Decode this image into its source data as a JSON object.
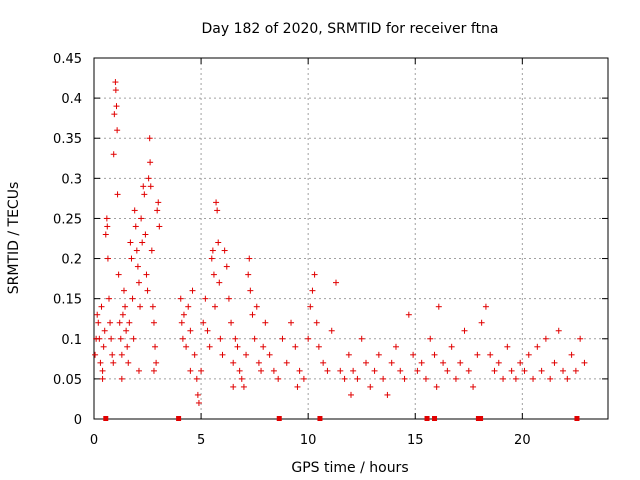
{
  "chart_data": {
    "type": "scatter",
    "title": "Day 182 of 2020, SRMTID for receiver ftna",
    "xlabel": "GPS time / hours",
    "ylabel": "SRMTID / TECUs",
    "xlim": [
      0,
      24
    ],
    "ylim": [
      0,
      0.45
    ],
    "xticks": [
      0,
      5,
      10,
      15,
      20
    ],
    "xtick_labels": [
      "0",
      "5",
      "10",
      "15",
      "20"
    ],
    "yticks": [
      0,
      0.05,
      0.1,
      0.15,
      0.2,
      0.25,
      0.3,
      0.35,
      0.4,
      0.45
    ],
    "ytick_labels": [
      "0",
      "0.05",
      "0.1",
      "0.15",
      "0.2",
      "0.25",
      "0.3",
      "0.35",
      "0.4",
      "0.45"
    ],
    "grid": true,
    "marker": "+",
    "color": "#e00000",
    "zero_markers_x": [
      0.55,
      3.95,
      8.65,
      10.55,
      15.55,
      15.9,
      17.95,
      18.05,
      22.55
    ],
    "series": [
      {
        "name": "SRMTID",
        "points": [
          [
            0.05,
            0.08
          ],
          [
            0.1,
            0.1
          ],
          [
            0.15,
            0.13
          ],
          [
            0.2,
            0.12
          ],
          [
            0.25,
            0.1
          ],
          [
            0.3,
            0.07
          ],
          [
            0.35,
            0.14
          ],
          [
            0.4,
            0.06
          ],
          [
            0.45,
            0.09
          ],
          [
            0.5,
            0.11
          ],
          [
            0.55,
            0.23
          ],
          [
            0.6,
            0.25
          ],
          [
            0.62,
            0.24
          ],
          [
            0.65,
            0.2
          ],
          [
            0.7,
            0.15
          ],
          [
            0.75,
            0.12
          ],
          [
            0.8,
            0.1
          ],
          [
            0.85,
            0.08
          ],
          [
            0.9,
            0.07
          ],
          [
            0.92,
            0.33
          ],
          [
            0.95,
            0.38
          ],
          [
            1.0,
            0.42
          ],
          [
            1.02,
            0.41
          ],
          [
            1.05,
            0.39
          ],
          [
            1.08,
            0.36
          ],
          [
            1.1,
            0.28
          ],
          [
            1.15,
            0.18
          ],
          [
            1.2,
            0.12
          ],
          [
            1.25,
            0.1
          ],
          [
            1.3,
            0.08
          ],
          [
            1.35,
            0.13
          ],
          [
            1.4,
            0.16
          ],
          [
            1.45,
            0.14
          ],
          [
            1.5,
            0.11
          ],
          [
            1.55,
            0.09
          ],
          [
            1.6,
            0.07
          ],
          [
            1.65,
            0.12
          ],
          [
            1.7,
            0.22
          ],
          [
            1.75,
            0.2
          ],
          [
            1.8,
            0.15
          ],
          [
            1.85,
            0.1
          ],
          [
            1.9,
            0.26
          ],
          [
            1.95,
            0.24
          ],
          [
            2.0,
            0.21
          ],
          [
            2.05,
            0.19
          ],
          [
            2.1,
            0.17
          ],
          [
            2.15,
            0.14
          ],
          [
            2.2,
            0.25
          ],
          [
            2.25,
            0.22
          ],
          [
            2.3,
            0.29
          ],
          [
            2.35,
            0.28
          ],
          [
            2.4,
            0.23
          ],
          [
            2.45,
            0.18
          ],
          [
            2.5,
            0.16
          ],
          [
            2.55,
            0.3
          ],
          [
            2.6,
            0.35
          ],
          [
            2.62,
            0.32
          ],
          [
            2.65,
            0.29
          ],
          [
            2.7,
            0.21
          ],
          [
            2.75,
            0.14
          ],
          [
            2.8,
            0.12
          ],
          [
            2.85,
            0.09
          ],
          [
            2.9,
            0.07
          ],
          [
            2.95,
            0.26
          ],
          [
            3.0,
            0.27
          ],
          [
            3.05,
            0.24
          ],
          [
            1.3,
            0.05
          ],
          [
            2.1,
            0.06
          ],
          [
            0.4,
            0.05
          ],
          [
            2.8,
            0.06
          ],
          [
            4.05,
            0.15
          ],
          [
            4.1,
            0.12
          ],
          [
            4.15,
            0.1
          ],
          [
            4.2,
            0.13
          ],
          [
            4.3,
            0.09
          ],
          [
            4.4,
            0.14
          ],
          [
            4.5,
            0.11
          ],
          [
            4.6,
            0.16
          ],
          [
            4.7,
            0.08
          ],
          [
            4.8,
            0.05
          ],
          [
            4.85,
            0.03
          ],
          [
            4.9,
            0.02
          ],
          [
            5.0,
            0.06
          ],
          [
            5.1,
            0.12
          ],
          [
            5.2,
            0.15
          ],
          [
            5.3,
            0.11
          ],
          [
            5.4,
            0.09
          ],
          [
            5.5,
            0.2
          ],
          [
            5.55,
            0.21
          ],
          [
            5.6,
            0.18
          ],
          [
            5.65,
            0.14
          ],
          [
            5.7,
            0.27
          ],
          [
            5.75,
            0.26
          ],
          [
            5.8,
            0.22
          ],
          [
            5.85,
            0.17
          ],
          [
            5.9,
            0.1
          ],
          [
            6.0,
            0.08
          ],
          [
            6.1,
            0.21
          ],
          [
            6.2,
            0.19
          ],
          [
            6.3,
            0.15
          ],
          [
            6.4,
            0.12
          ],
          [
            6.5,
            0.07
          ],
          [
            6.6,
            0.1
          ],
          [
            6.7,
            0.09
          ],
          [
            6.8,
            0.06
          ],
          [
            6.9,
            0.05
          ],
          [
            7.0,
            0.04
          ],
          [
            7.1,
            0.08
          ],
          [
            7.2,
            0.18
          ],
          [
            7.25,
            0.2
          ],
          [
            7.3,
            0.16
          ],
          [
            7.4,
            0.13
          ],
          [
            7.5,
            0.1
          ],
          [
            7.6,
            0.14
          ],
          [
            7.7,
            0.07
          ],
          [
            7.8,
            0.06
          ],
          [
            7.9,
            0.09
          ],
          [
            8.0,
            0.12
          ],
          [
            8.2,
            0.08
          ],
          [
            8.4,
            0.06
          ],
          [
            8.6,
            0.05
          ],
          [
            8.8,
            0.1
          ],
          [
            9.0,
            0.07
          ],
          [
            9.2,
            0.12
          ],
          [
            9.4,
            0.09
          ],
          [
            9.6,
            0.06
          ],
          [
            9.8,
            0.05
          ],
          [
            10.0,
            0.1
          ],
          [
            10.1,
            0.14
          ],
          [
            10.2,
            0.16
          ],
          [
            10.3,
            0.18
          ],
          [
            10.4,
            0.12
          ],
          [
            10.5,
            0.09
          ],
          [
            10.7,
            0.07
          ],
          [
            10.9,
            0.06
          ],
          [
            11.1,
            0.11
          ],
          [
            11.3,
            0.17
          ],
          [
            11.5,
            0.06
          ],
          [
            11.7,
            0.05
          ],
          [
            11.9,
            0.08
          ],
          [
            12.1,
            0.06
          ],
          [
            12.3,
            0.05
          ],
          [
            12.5,
            0.1
          ],
          [
            12.7,
            0.07
          ],
          [
            12.9,
            0.04
          ],
          [
            13.1,
            0.06
          ],
          [
            13.3,
            0.08
          ],
          [
            13.5,
            0.05
          ],
          [
            13.7,
            0.03
          ],
          [
            13.9,
            0.07
          ],
          [
            14.1,
            0.09
          ],
          [
            14.3,
            0.06
          ],
          [
            14.5,
            0.05
          ],
          [
            14.7,
            0.13
          ],
          [
            14.9,
            0.08
          ],
          [
            15.1,
            0.06
          ],
          [
            15.3,
            0.07
          ],
          [
            15.5,
            0.05
          ],
          [
            15.7,
            0.1
          ],
          [
            15.9,
            0.08
          ],
          [
            16.1,
            0.14
          ],
          [
            16.3,
            0.07
          ],
          [
            16.5,
            0.06
          ],
          [
            16.7,
            0.09
          ],
          [
            16.9,
            0.05
          ],
          [
            17.1,
            0.07
          ],
          [
            17.3,
            0.11
          ],
          [
            17.5,
            0.06
          ],
          [
            17.7,
            0.04
          ],
          [
            17.9,
            0.08
          ],
          [
            18.1,
            0.12
          ],
          [
            18.3,
            0.14
          ],
          [
            18.5,
            0.08
          ],
          [
            18.7,
            0.06
          ],
          [
            18.9,
            0.07
          ],
          [
            19.1,
            0.05
          ],
          [
            19.3,
            0.09
          ],
          [
            19.5,
            0.06
          ],
          [
            19.7,
            0.05
          ],
          [
            19.9,
            0.07
          ],
          [
            20.1,
            0.06
          ],
          [
            20.3,
            0.08
          ],
          [
            20.5,
            0.05
          ],
          [
            20.7,
            0.09
          ],
          [
            20.9,
            0.06
          ],
          [
            21.1,
            0.1
          ],
          [
            21.3,
            0.05
          ],
          [
            21.5,
            0.07
          ],
          [
            21.7,
            0.11
          ],
          [
            21.9,
            0.06
          ],
          [
            22.1,
            0.05
          ],
          [
            22.3,
            0.08
          ],
          [
            22.5,
            0.06
          ],
          [
            22.7,
            0.1
          ],
          [
            22.9,
            0.07
          ],
          [
            4.5,
            0.06
          ],
          [
            6.5,
            0.04
          ],
          [
            9.5,
            0.04
          ],
          [
            12.0,
            0.03
          ],
          [
            16.0,
            0.04
          ]
        ]
      }
    ]
  }
}
